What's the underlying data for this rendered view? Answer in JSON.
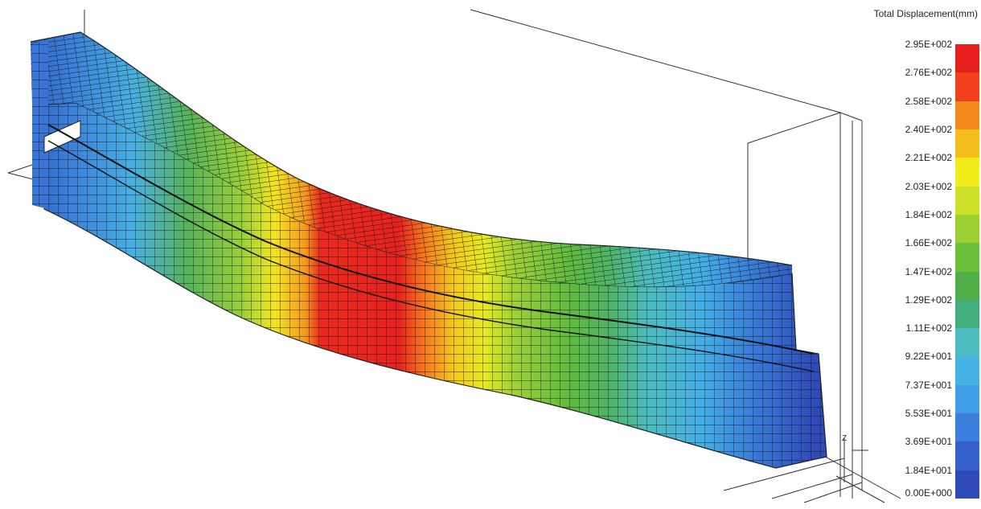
{
  "legend": {
    "title": "Total Displacement(mm)",
    "labels": [
      "2.95E+002",
      "2.76E+002",
      "2.58E+002",
      "2.40E+002",
      "2.21E+002",
      "2.03E+002",
      "1.84E+002",
      "1.66E+002",
      "1.47E+002",
      "1.29E+002",
      "1.11E+002",
      "9.22E+001",
      "7.37E+001",
      "5.53E+001",
      "3.69E+001",
      "1.84E+001",
      "0.00E+000"
    ],
    "colors": [
      "#e61e1e",
      "#f0401c",
      "#f58a1e",
      "#f6be1c",
      "#f2ec1c",
      "#cfe22a",
      "#9ccf34",
      "#6cbf3c",
      "#4fae46",
      "#43ae7c",
      "#4cbcc0",
      "#45b4e4",
      "#409ee6",
      "#3a80dc",
      "#3461cc",
      "#2f4bb8"
    ]
  },
  "model": {
    "axis_label": "Z"
  }
}
